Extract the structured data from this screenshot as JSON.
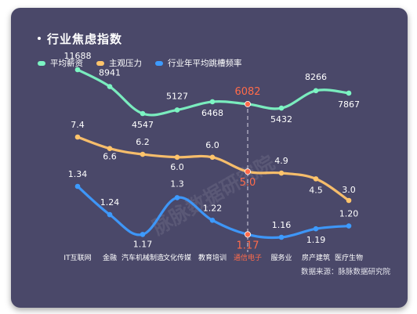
{
  "title": "行业焦虑指数",
  "source": "数据来源：脉脉数据研究院",
  "watermark": "脉脉数据研究院",
  "highlight_color": "#ff6b4a",
  "chart_data": {
    "type": "line",
    "title": "行业焦虑指数",
    "categories": [
      "IT互联网",
      "金融",
      "汽车机械制造",
      "文化传媒",
      "教育培训",
      "通信电子",
      "服务业",
      "房产建筑",
      "医疗生物"
    ],
    "highlight_category": "通信电子",
    "series": [
      {
        "name": "平均薪资",
        "color": "#7cf5c3",
        "values": [
          11688,
          8941,
          4547,
          5127,
          6468,
          6082,
          5432,
          8266,
          7867
        ],
        "labels": [
          "11688",
          "8941",
          "4547",
          "5127",
          "6468",
          "6082",
          "5432",
          "8266",
          "7867"
        ]
      },
      {
        "name": "主观压力",
        "color": "#ffc46b",
        "values": [
          7.4,
          6.6,
          6.2,
          6.0,
          6.0,
          5.0,
          4.9,
          4.5,
          3.0
        ],
        "labels": [
          "7.4",
          "6.6",
          "6.2",
          "6.0",
          "6.0",
          "5.0",
          "4.9",
          "4.5",
          "3.0"
        ]
      },
      {
        "name": "行业年平均跳槽频率",
        "color": "#3d9bff",
        "values": [
          1.34,
          1.24,
          1.17,
          1.3,
          1.22,
          1.17,
          1.16,
          1.19,
          1.2
        ],
        "labels": [
          "1.34",
          "1.24",
          "1.17",
          "1.3",
          "1.22",
          "1.17",
          "1.16",
          "1.19",
          "1.20"
        ]
      }
    ],
    "grid": false,
    "legend_position": "top-left"
  }
}
